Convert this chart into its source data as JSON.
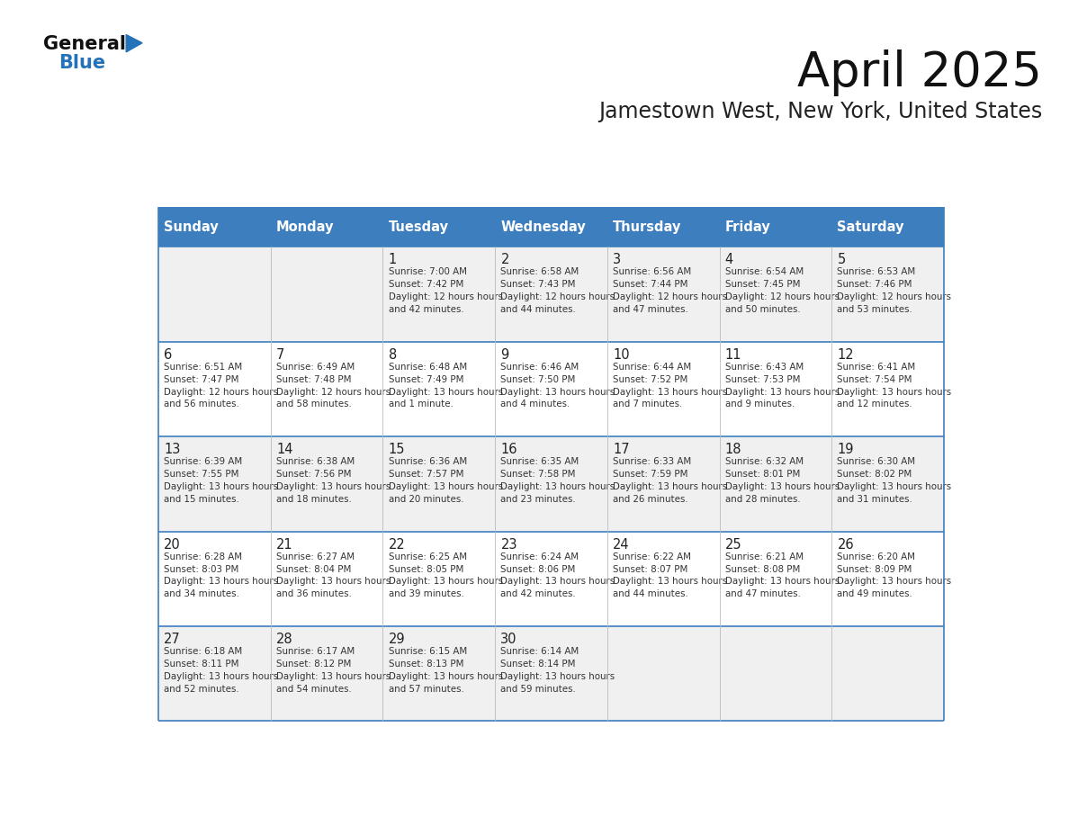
{
  "title": "April 2025",
  "subtitle": "Jamestown West, New York, United States",
  "days_of_week": [
    "Sunday",
    "Monday",
    "Tuesday",
    "Wednesday",
    "Thursday",
    "Friday",
    "Saturday"
  ],
  "header_bg": "#3d7ebf",
  "header_text": "#ffffff",
  "odd_row_bg": "#f0f0f0",
  "even_row_bg": "#ffffff",
  "row_border_color": "#3d7ebf",
  "col_border_color": "#bbbbbb",
  "day_number_color": "#222222",
  "text_color": "#333333",
  "title_color": "#111111",
  "subtitle_color": "#222222",
  "logo_general_color": "#111111",
  "logo_blue_color": "#2472b8",
  "logo_triangle_color": "#2472b8",
  "calendar_data": [
    {
      "day": 1,
      "col": 2,
      "row": 0,
      "sunrise": "7:00 AM",
      "sunset": "7:42 PM",
      "daylight": "12 hours and 42 minutes."
    },
    {
      "day": 2,
      "col": 3,
      "row": 0,
      "sunrise": "6:58 AM",
      "sunset": "7:43 PM",
      "daylight": "12 hours and 44 minutes."
    },
    {
      "day": 3,
      "col": 4,
      "row": 0,
      "sunrise": "6:56 AM",
      "sunset": "7:44 PM",
      "daylight": "12 hours and 47 minutes."
    },
    {
      "day": 4,
      "col": 5,
      "row": 0,
      "sunrise": "6:54 AM",
      "sunset": "7:45 PM",
      "daylight": "12 hours and 50 minutes."
    },
    {
      "day": 5,
      "col": 6,
      "row": 0,
      "sunrise": "6:53 AM",
      "sunset": "7:46 PM",
      "daylight": "12 hours and 53 minutes."
    },
    {
      "day": 6,
      "col": 0,
      "row": 1,
      "sunrise": "6:51 AM",
      "sunset": "7:47 PM",
      "daylight": "12 hours and 56 minutes."
    },
    {
      "day": 7,
      "col": 1,
      "row": 1,
      "sunrise": "6:49 AM",
      "sunset": "7:48 PM",
      "daylight": "12 hours and 58 minutes."
    },
    {
      "day": 8,
      "col": 2,
      "row": 1,
      "sunrise": "6:48 AM",
      "sunset": "7:49 PM",
      "daylight": "13 hours and 1 minute."
    },
    {
      "day": 9,
      "col": 3,
      "row": 1,
      "sunrise": "6:46 AM",
      "sunset": "7:50 PM",
      "daylight": "13 hours and 4 minutes."
    },
    {
      "day": 10,
      "col": 4,
      "row": 1,
      "sunrise": "6:44 AM",
      "sunset": "7:52 PM",
      "daylight": "13 hours and 7 minutes."
    },
    {
      "day": 11,
      "col": 5,
      "row": 1,
      "sunrise": "6:43 AM",
      "sunset": "7:53 PM",
      "daylight": "13 hours and 9 minutes."
    },
    {
      "day": 12,
      "col": 6,
      "row": 1,
      "sunrise": "6:41 AM",
      "sunset": "7:54 PM",
      "daylight": "13 hours and 12 minutes."
    },
    {
      "day": 13,
      "col": 0,
      "row": 2,
      "sunrise": "6:39 AM",
      "sunset": "7:55 PM",
      "daylight": "13 hours and 15 minutes."
    },
    {
      "day": 14,
      "col": 1,
      "row": 2,
      "sunrise": "6:38 AM",
      "sunset": "7:56 PM",
      "daylight": "13 hours and 18 minutes."
    },
    {
      "day": 15,
      "col": 2,
      "row": 2,
      "sunrise": "6:36 AM",
      "sunset": "7:57 PM",
      "daylight": "13 hours and 20 minutes."
    },
    {
      "day": 16,
      "col": 3,
      "row": 2,
      "sunrise": "6:35 AM",
      "sunset": "7:58 PM",
      "daylight": "13 hours and 23 minutes."
    },
    {
      "day": 17,
      "col": 4,
      "row": 2,
      "sunrise": "6:33 AM",
      "sunset": "7:59 PM",
      "daylight": "13 hours and 26 minutes."
    },
    {
      "day": 18,
      "col": 5,
      "row": 2,
      "sunrise": "6:32 AM",
      "sunset": "8:01 PM",
      "daylight": "13 hours and 28 minutes."
    },
    {
      "day": 19,
      "col": 6,
      "row": 2,
      "sunrise": "6:30 AM",
      "sunset": "8:02 PM",
      "daylight": "13 hours and 31 minutes."
    },
    {
      "day": 20,
      "col": 0,
      "row": 3,
      "sunrise": "6:28 AM",
      "sunset": "8:03 PM",
      "daylight": "13 hours and 34 minutes."
    },
    {
      "day": 21,
      "col": 1,
      "row": 3,
      "sunrise": "6:27 AM",
      "sunset": "8:04 PM",
      "daylight": "13 hours and 36 minutes."
    },
    {
      "day": 22,
      "col": 2,
      "row": 3,
      "sunrise": "6:25 AM",
      "sunset": "8:05 PM",
      "daylight": "13 hours and 39 minutes."
    },
    {
      "day": 23,
      "col": 3,
      "row": 3,
      "sunrise": "6:24 AM",
      "sunset": "8:06 PM",
      "daylight": "13 hours and 42 minutes."
    },
    {
      "day": 24,
      "col": 4,
      "row": 3,
      "sunrise": "6:22 AM",
      "sunset": "8:07 PM",
      "daylight": "13 hours and 44 minutes."
    },
    {
      "day": 25,
      "col": 5,
      "row": 3,
      "sunrise": "6:21 AM",
      "sunset": "8:08 PM",
      "daylight": "13 hours and 47 minutes."
    },
    {
      "day": 26,
      "col": 6,
      "row": 3,
      "sunrise": "6:20 AM",
      "sunset": "8:09 PM",
      "daylight": "13 hours and 49 minutes."
    },
    {
      "day": 27,
      "col": 0,
      "row": 4,
      "sunrise": "6:18 AM",
      "sunset": "8:11 PM",
      "daylight": "13 hours and 52 minutes."
    },
    {
      "day": 28,
      "col": 1,
      "row": 4,
      "sunrise": "6:17 AM",
      "sunset": "8:12 PM",
      "daylight": "13 hours and 54 minutes."
    },
    {
      "day": 29,
      "col": 2,
      "row": 4,
      "sunrise": "6:15 AM",
      "sunset": "8:13 PM",
      "daylight": "13 hours and 57 minutes."
    },
    {
      "day": 30,
      "col": 3,
      "row": 4,
      "sunrise": "6:14 AM",
      "sunset": "8:14 PM",
      "daylight": "13 hours and 59 minutes."
    }
  ]
}
